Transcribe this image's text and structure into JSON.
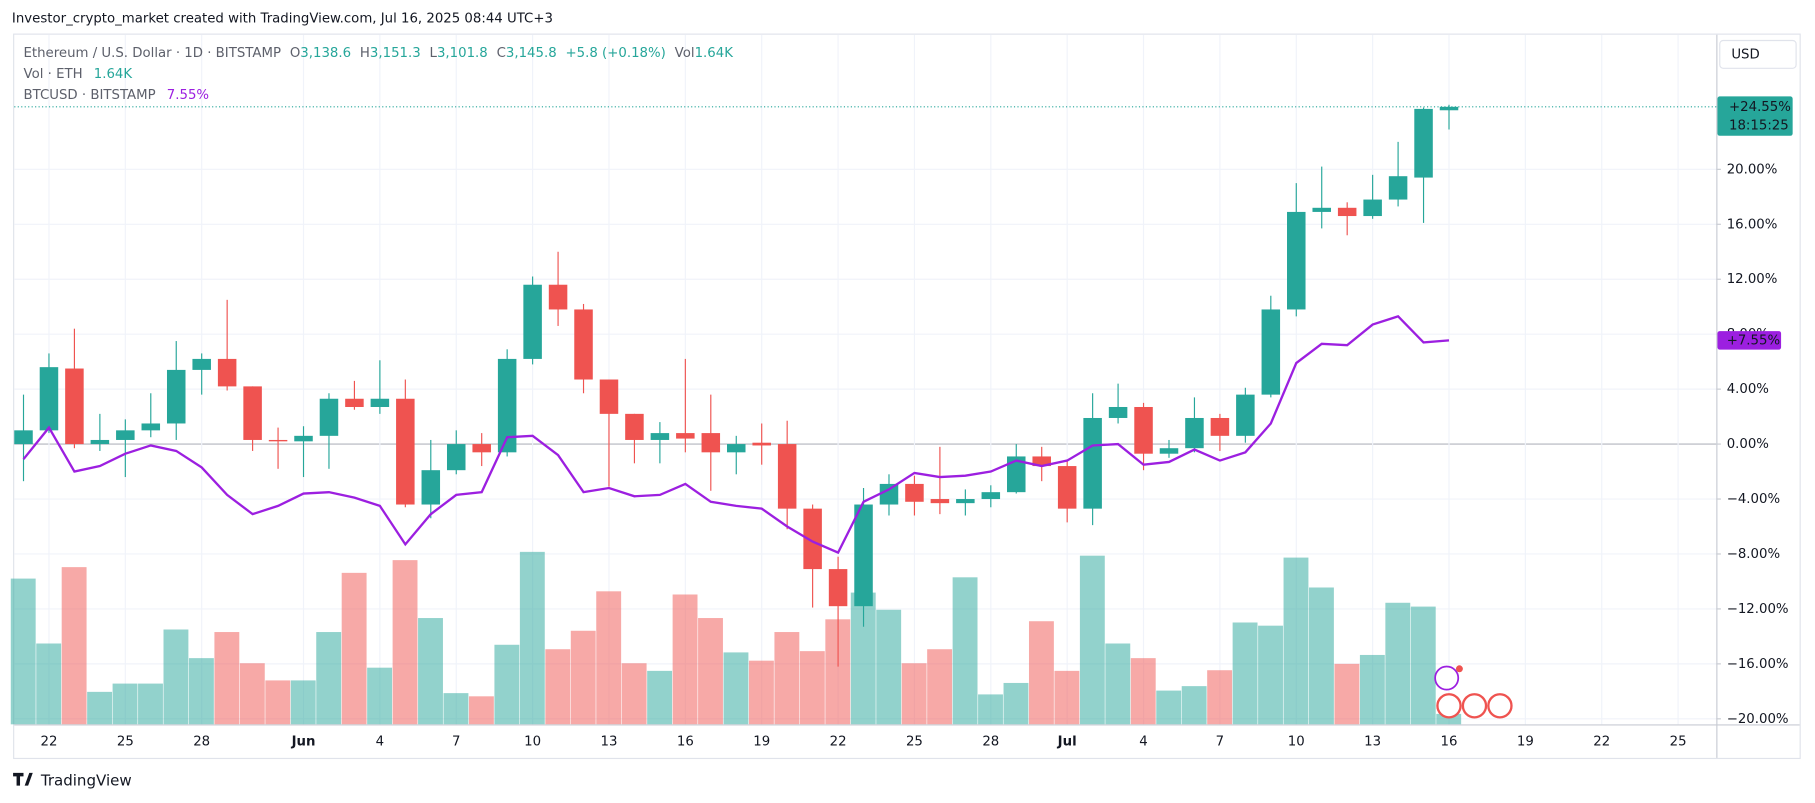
{
  "header": {
    "credit": "Investor_crypto_market created with TradingView.com, Jul 16, 2025 08:44 UTC+3",
    "logo": "TradingView",
    "currency": "USD"
  },
  "legend": {
    "symbol": "Ethereum / U.S. Dollar · 1D · BITSTAMP",
    "o_label": "O",
    "o": "3,138.6",
    "h_label": "H",
    "h": "3,151.3",
    "l_label": "L",
    "l": "3,101.8",
    "c_label": "C",
    "c": "3,145.8",
    "change": "+5.8 (+0.18%)",
    "vol_label": "Vol",
    "vol": "1.64K",
    "volume_title": "Vol · ETH",
    "volume_value": "1.64K"
  },
  "chart_data": {
    "type": "candlestick",
    "x": [
      "05-21",
      "05-22",
      "05-23",
      "05-24",
      "05-25",
      "05-26",
      "05-27",
      "05-28",
      "05-29",
      "05-30",
      "05-31",
      "06-01",
      "06-02",
      "06-03",
      "06-04",
      "06-05",
      "06-06",
      "06-07",
      "06-08",
      "06-09",
      "06-10",
      "06-11",
      "06-12",
      "06-13",
      "06-14",
      "06-15",
      "06-16",
      "06-17",
      "06-18",
      "06-19",
      "06-20",
      "06-21",
      "06-22",
      "06-23",
      "06-24",
      "06-25",
      "06-26",
      "06-27",
      "06-28",
      "06-29",
      "06-30",
      "07-01",
      "07-02",
      "07-03",
      "07-04",
      "07-05",
      "07-06",
      "07-07",
      "07-08",
      "07-09",
      "07-10",
      "07-11",
      "07-12",
      "07-13",
      "07-14",
      "07-15",
      "07-16"
    ],
    "open": [
      0.0,
      1.0,
      5.5,
      0.0,
      0.3,
      1.0,
      1.5,
      5.4,
      6.2,
      4.2,
      0.3,
      0.2,
      0.6,
      3.3,
      2.7,
      3.3,
      -4.4,
      -1.9,
      0.0,
      -0.6,
      6.2,
      11.6,
      9.8,
      4.7,
      2.2,
      0.3,
      0.8,
      0.8,
      -0.6,
      0.1,
      0.0,
      -4.7,
      -9.1,
      -11.8,
      -4.4,
      -2.9,
      -4.0,
      -4.3,
      -4.0,
      -3.5,
      -0.9,
      -1.6,
      -4.7,
      1.9,
      2.7,
      -0.7,
      -0.3,
      1.9,
      0.6,
      3.6,
      9.8,
      16.9,
      17.2,
      16.6,
      17.8,
      19.4,
      24.3
    ],
    "high": [
      3.6,
      6.6,
      8.4,
      2.2,
      1.8,
      3.7,
      7.5,
      6.6,
      10.5,
      4.2,
      1.2,
      1.3,
      3.7,
      4.6,
      6.1,
      4.7,
      0.3,
      1.0,
      0.8,
      6.9,
      12.2,
      14.0,
      10.2,
      4.7,
      2.2,
      1.6,
      6.2,
      3.6,
      0.6,
      1.5,
      1.7,
      -4.4,
      -8.2,
      -3.2,
      -2.2,
      -2.3,
      -0.2,
      -3.3,
      -3.0,
      0.0,
      -0.2,
      -1.2,
      3.7,
      4.4,
      3.0,
      0.3,
      3.4,
      2.2,
      4.1,
      10.8,
      19.0,
      20.2,
      17.6,
      19.6,
      22.0,
      24.5,
      24.7
    ],
    "low": [
      -2.7,
      0.8,
      -0.3,
      -0.5,
      -2.4,
      0.5,
      0.3,
      3.6,
      3.9,
      -0.5,
      -1.8,
      -2.4,
      -1.8,
      2.5,
      2.2,
      -4.6,
      -5.4,
      -2.2,
      -1.6,
      -0.9,
      5.8,
      8.6,
      3.7,
      -3.1,
      -1.4,
      -1.4,
      -0.6,
      -3.4,
      -2.2,
      -1.5,
      -6.2,
      -11.9,
      -16.2,
      -13.3,
      -5.2,
      -5.2,
      -5.1,
      -5.2,
      -4.6,
      -3.6,
      -2.7,
      -5.7,
      -5.9,
      1.5,
      -1.9,
      -1.0,
      -0.6,
      -0.5,
      0.1,
      3.4,
      9.3,
      15.7,
      15.2,
      16.4,
      17.3,
      16.1,
      22.9
    ],
    "close": [
      1.0,
      5.6,
      0.0,
      0.3,
      1.0,
      1.5,
      5.4,
      6.2,
      4.2,
      0.3,
      0.2,
      0.6,
      3.3,
      2.7,
      3.3,
      -4.4,
      -1.9,
      0.0,
      -0.6,
      6.2,
      11.6,
      9.8,
      4.7,
      2.2,
      0.3,
      0.8,
      0.4,
      -0.6,
      0.0,
      -0.1,
      -4.7,
      -9.1,
      -11.8,
      -4.4,
      -2.9,
      -4.2,
      -4.3,
      -4.0,
      -3.5,
      -0.9,
      -1.6,
      -4.7,
      1.9,
      2.7,
      -0.7,
      -0.3,
      1.9,
      0.6,
      3.6,
      9.8,
      16.9,
      17.2,
      16.6,
      17.8,
      19.5,
      24.4,
      24.55
    ],
    "up_color": "#26a69a",
    "down_color": "#ef5350",
    "last_label": "+24.55%",
    "countdown": "18:15:25",
    "volume": {
      "values": [
        22.9,
        12.7,
        24.7,
        5.1,
        6.4,
        6.4,
        14.9,
        10.4,
        14.5,
        9.6,
        6.9,
        6.9,
        14.5,
        23.8,
        8.9,
        25.8,
        16.7,
        4.9,
        4.4,
        12.5,
        27.1,
        11.8,
        14.7,
        20.9,
        9.6,
        8.4,
        20.4,
        16.7,
        11.3,
        10.0,
        14.5,
        11.5,
        16.5,
        20.7,
        18.0,
        9.6,
        11.8,
        23.1,
        4.7,
        6.5,
        16.2,
        8.4,
        26.5,
        12.7,
        10.4,
        5.3,
        6.0,
        8.5,
        16.0,
        15.5,
        26.2,
        21.5,
        9.5,
        10.9,
        19.1,
        18.5,
        1.64
      ],
      "ylim": [
        0,
        30
      ]
    },
    "series": [
      {
        "name": "BTCUSD · BITSTAMP",
        "color": "#9c1fe0",
        "legend_label": "7.55%",
        "last_label": "+7.55%",
        "values": [
          -1.1,
          1.2,
          -2.0,
          -1.6,
          -0.7,
          -0.1,
          -0.5,
          -1.7,
          -3.7,
          -5.1,
          -4.5,
          -3.6,
          -3.5,
          -3.9,
          -4.5,
          -7.3,
          -5.1,
          -3.7,
          -3.5,
          0.5,
          0.6,
          -0.8,
          -3.5,
          -3.2,
          -3.8,
          -3.7,
          -2.9,
          -4.2,
          -4.5,
          -4.7,
          -6.0,
          -7.1,
          -7.9,
          -4.2,
          -3.3,
          -2.1,
          -2.4,
          -2.3,
          -2.0,
          -1.2,
          -1.6,
          -1.2,
          -0.1,
          0.0,
          -1.5,
          -1.3,
          -0.4,
          -1.2,
          -0.6,
          1.5,
          5.9,
          7.3,
          7.2,
          8.7,
          9.3,
          7.4,
          7.55
        ]
      }
    ],
    "ylim": [
      -20.4,
      29.8
    ],
    "yticks": [
      {
        "value": -20,
        "label": "−20.00%"
      },
      {
        "value": -16,
        "label": "−16.00%"
      },
      {
        "value": -12,
        "label": "−12.00%"
      },
      {
        "value": -8,
        "label": "−8.00%"
      },
      {
        "value": -4,
        "label": "−4.00%"
      },
      {
        "value": 0,
        "label": "0.00%"
      },
      {
        "value": 4,
        "label": "4.00%"
      },
      {
        "value": 8,
        "label": "8.00%"
      },
      {
        "value": 12,
        "label": "12.00%"
      },
      {
        "value": 16,
        "label": "16.00%"
      },
      {
        "value": 20,
        "label": "20.00%"
      }
    ],
    "xticks": [
      {
        "value": "05-22",
        "label": "22"
      },
      {
        "value": "05-25",
        "label": "25"
      },
      {
        "value": "05-28",
        "label": "28"
      },
      {
        "value": "06-01",
        "label": "Jun"
      },
      {
        "value": "06-04",
        "label": "4"
      },
      {
        "value": "06-07",
        "label": "7"
      },
      {
        "value": "06-10",
        "label": "10"
      },
      {
        "value": "06-13",
        "label": "13"
      },
      {
        "value": "06-16",
        "label": "16"
      },
      {
        "value": "06-19",
        "label": "19"
      },
      {
        "value": "06-22",
        "label": "22"
      },
      {
        "value": "06-25",
        "label": "25"
      },
      {
        "value": "06-28",
        "label": "28"
      },
      {
        "value": "07-01",
        "label": "Jul"
      },
      {
        "value": "07-04",
        "label": "4"
      },
      {
        "value": "07-07",
        "label": "7"
      },
      {
        "value": "07-10",
        "label": "10"
      },
      {
        "value": "07-13",
        "label": "13"
      },
      {
        "value": "07-16",
        "label": "16"
      },
      {
        "value": "07-19",
        "label": "19"
      },
      {
        "value": "07-22",
        "label": "22"
      },
      {
        "value": "07-25",
        "label": "25"
      }
    ],
    "grid": true
  }
}
